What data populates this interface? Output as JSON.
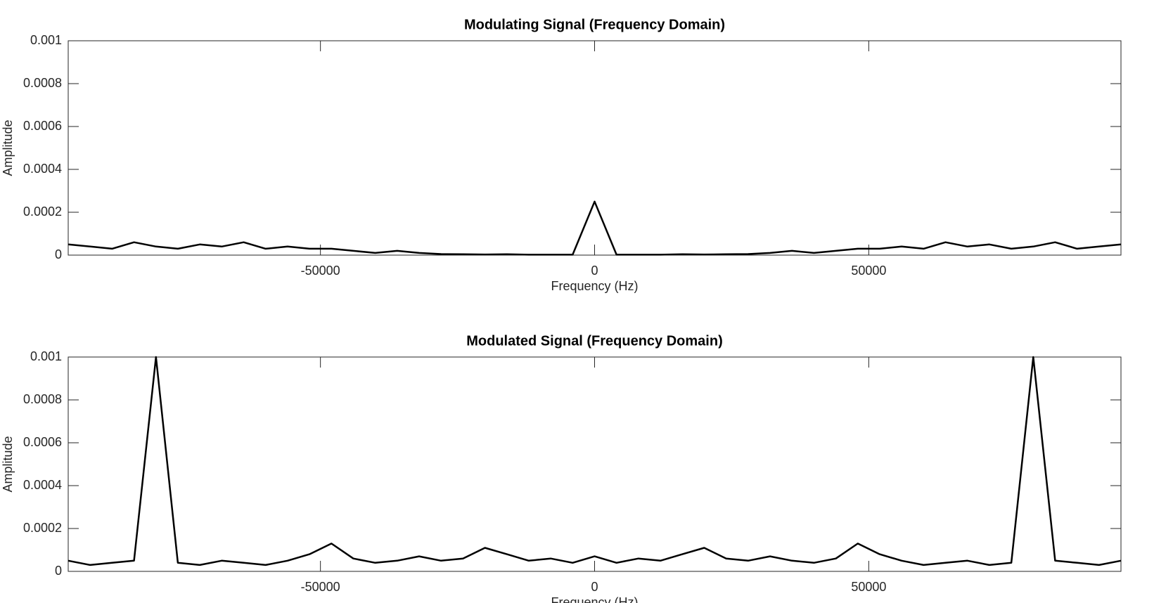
{
  "chart_data": [
    {
      "type": "line",
      "title": "Modulating Signal (Frequency Domain)",
      "x_label": "Frequency (Hz)",
      "y_label": "Amplitude",
      "x": [
        -96000,
        -92000,
        -88000,
        -84000,
        -80000,
        -76000,
        -72000,
        -68000,
        -64000,
        -60000,
        -56000,
        -52000,
        -48000,
        -44000,
        -40000,
        -36000,
        -32000,
        -28000,
        -24000,
        -20000,
        -16000,
        -12000,
        -8000,
        -4000,
        0,
        4000,
        8000,
        12000,
        16000,
        20000,
        24000,
        28000,
        32000,
        36000,
        40000,
        44000,
        48000,
        52000,
        56000,
        60000,
        64000,
        68000,
        72000,
        76000,
        80000,
        84000,
        88000,
        92000,
        96000
      ],
      "series": [
        {
          "color": "#000000",
          "values": [
            5e-05,
            4e-05,
            3e-05,
            6e-05,
            4e-05,
            3e-05,
            5e-05,
            4e-05,
            6e-05,
            3e-05,
            4e-05,
            3e-05,
            3e-05,
            2e-05,
            1e-05,
            2e-05,
            1e-05,
            5e-06,
            4e-06,
            3e-06,
            4e-06,
            2e-06,
            2e-06,
            2e-06,
            0.00025,
            2e-06,
            2e-06,
            2e-06,
            4e-06,
            3e-06,
            4e-06,
            5e-06,
            1e-05,
            2e-05,
            1e-05,
            2e-05,
            3e-05,
            3e-05,
            4e-05,
            3e-05,
            6e-05,
            4e-05,
            5e-05,
            3e-05,
            4e-05,
            6e-05,
            3e-05,
            4e-05,
            5e-05
          ]
        }
      ],
      "xlim": [
        -96000,
        96000
      ],
      "xticks": [
        -50000,
        0,
        50000
      ],
      "ylim": [
        0,
        0.001
      ],
      "yticks": [
        0,
        0.0002,
        0.0004,
        0.0006,
        0.0008,
        0.001
      ]
    },
    {
      "type": "line",
      "title": "Modulated Signal (Frequency Domain)",
      "x_label": "Frequency (Hz)",
      "y_label": "Amplitude",
      "x": [
        -96000,
        -92000,
        -88000,
        -84000,
        -80000,
        -76000,
        -72000,
        -68000,
        -64000,
        -60000,
        -56000,
        -52000,
        -48000,
        -44000,
        -40000,
        -36000,
        -32000,
        -28000,
        -24000,
        -20000,
        -16000,
        -12000,
        -8000,
        -4000,
        0,
        4000,
        8000,
        12000,
        16000,
        20000,
        24000,
        28000,
        32000,
        36000,
        40000,
        44000,
        48000,
        52000,
        56000,
        60000,
        64000,
        68000,
        72000,
        76000,
        80000,
        84000,
        88000,
        92000,
        96000
      ],
      "series": [
        {
          "color": "#000000",
          "values": [
            5e-05,
            3e-05,
            4e-05,
            5e-05,
            0.001,
            4e-05,
            3e-05,
            5e-05,
            4e-05,
            3e-05,
            5e-05,
            8e-05,
            0.00013,
            6e-05,
            4e-05,
            5e-05,
            7e-05,
            5e-05,
            6e-05,
            0.00011,
            8e-05,
            5e-05,
            6e-05,
            4e-05,
            7e-05,
            4e-05,
            6e-05,
            5e-05,
            8e-05,
            0.00011,
            6e-05,
            5e-05,
            7e-05,
            5e-05,
            4e-05,
            6e-05,
            0.00013,
            8e-05,
            5e-05,
            3e-05,
            4e-05,
            5e-05,
            3e-05,
            4e-05,
            0.001,
            5e-05,
            4e-05,
            3e-05,
            5e-05
          ]
        }
      ],
      "xlim": [
        -96000,
        96000
      ],
      "xticks": [
        -50000,
        0,
        50000
      ],
      "ylim": [
        0,
        0.001
      ],
      "yticks": [
        0,
        0.0002,
        0.0004,
        0.0006,
        0.0008,
        0.001
      ]
    }
  ]
}
